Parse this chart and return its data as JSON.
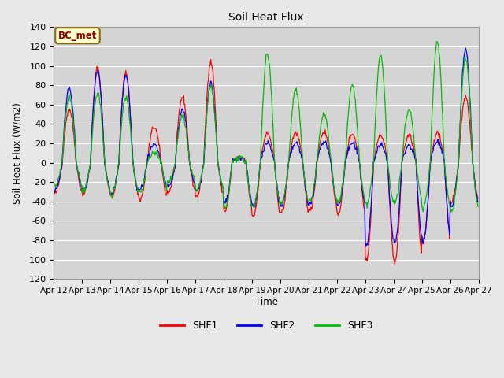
{
  "title": "Soil Heat Flux",
  "ylabel": "Soil Heat Flux (W/m2)",
  "xlabel": "Time",
  "annotation": "BC_met",
  "ylim": [
    -120,
    140
  ],
  "yticks": [
    -120,
    -100,
    -80,
    -60,
    -40,
    -20,
    0,
    20,
    40,
    60,
    80,
    100,
    120,
    140
  ],
  "xtick_labels": [
    "Apr 12",
    "Apr 13",
    "Apr 14",
    "Apr 15",
    "Apr 16",
    "Apr 17",
    "Apr 18",
    "Apr 19",
    "Apr 20",
    "Apr 21",
    "Apr 22",
    "Apr 23",
    "Apr 24",
    "Apr 25",
    "Apr 26",
    "Apr 27"
  ],
  "colors": {
    "SHF1": "#FF0000",
    "SHF2": "#0000FF",
    "SHF3": "#00BB00"
  },
  "bg_color": "#E8E8E8",
  "plot_bg_color": "#D4D4D4",
  "grid_color": "#FFFFFF",
  "pts_per_day": 48,
  "n_days": 15,
  "day_configs": [
    {
      "s1_day": 55,
      "s2_day": 78,
      "s3_day": 68,
      "s1_night": -32,
      "s2_night": -28,
      "s3_night": -24
    },
    {
      "s1_day": 98,
      "s2_day": 95,
      "s3_day": 72,
      "s1_night": -32,
      "s2_night": -30,
      "s3_night": -30
    },
    {
      "s1_day": 93,
      "s2_day": 90,
      "s3_day": 68,
      "s1_night": -35,
      "s2_night": -33,
      "s3_night": -33
    },
    {
      "s1_day": 37,
      "s2_day": 18,
      "s3_day": 10,
      "s1_night": -38,
      "s2_night": -28,
      "s3_night": -30
    },
    {
      "s1_day": 68,
      "s2_day": 55,
      "s3_day": 48,
      "s1_night": -30,
      "s2_night": -25,
      "s3_night": -20
    },
    {
      "s1_day": 104,
      "s2_day": 82,
      "s3_day": 78,
      "s1_night": -35,
      "s2_night": -30,
      "s3_night": -28
    },
    {
      "s1_day": 5,
      "s2_day": 5,
      "s3_day": 5,
      "s1_night": -50,
      "s2_night": -42,
      "s3_night": -47
    },
    {
      "s1_day": 30,
      "s2_day": 20,
      "s3_day": 113,
      "s1_night": -55,
      "s2_night": -45,
      "s3_night": -45
    },
    {
      "s1_day": 31,
      "s2_day": 20,
      "s3_day": 75,
      "s1_night": -52,
      "s2_night": -44,
      "s3_night": -42
    },
    {
      "s1_day": 32,
      "s2_day": 22,
      "s3_day": 50,
      "s1_night": -50,
      "s2_night": -43,
      "s3_night": -40
    },
    {
      "s1_day": 30,
      "s2_day": 20,
      "s3_day": 80,
      "s1_night": -52,
      "s2_night": -44,
      "s3_night": -40
    },
    {
      "s1_day": 28,
      "s2_day": 18,
      "s3_day": 110,
      "s1_night": -100,
      "s2_night": -85,
      "s3_night": -43
    },
    {
      "s1_day": 28,
      "s2_day": 18,
      "s3_day": 55,
      "s1_night": -103,
      "s2_night": -83,
      "s3_night": -40
    },
    {
      "s1_day": 30,
      "s2_day": 22,
      "s3_day": 124,
      "s1_night": -82,
      "s2_night": -80,
      "s3_night": -47
    },
    {
      "s1_day": 68,
      "s2_day": 116,
      "s3_day": 108,
      "s1_night": -40,
      "s2_night": -45,
      "s3_night": -50
    }
  ]
}
